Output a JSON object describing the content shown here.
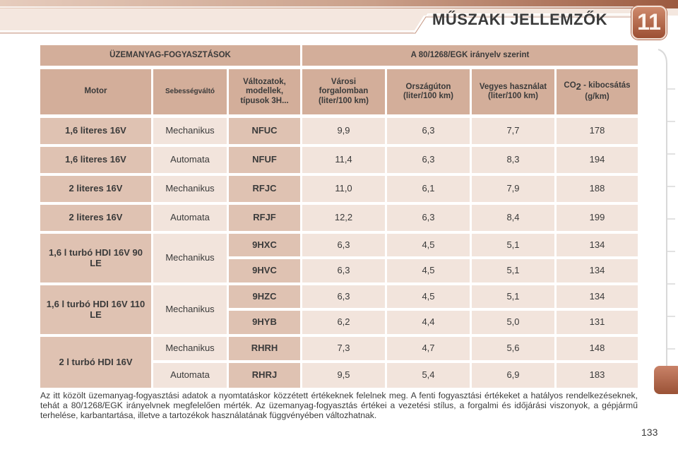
{
  "header": {
    "title": "MŰSZAKI JELLEMZŐK",
    "chapter": "11"
  },
  "table": {
    "group_left": "ÜZEMANYAG-FOGYASZTÁSOK",
    "group_right": "A 80/1268/EGK irányelv szerint",
    "col_motor": "Motor",
    "col_gearbox": "Sebességváltó",
    "col_variant": "Változatok, modellek, típusok 3H...",
    "col_city": "Városi forgalomban (liter/100 km)",
    "col_highway": "Országúton (liter/100 km)",
    "col_mixed": "Vegyes használat (liter/100 km)",
    "col_co2_pre": "CO",
    "col_co2_sub": "2",
    "col_co2_post": " - kibocsátás (g/km)",
    "groups": [
      {
        "motor": "1,6 literes 16V",
        "gearbox": "Mechanikus",
        "rows": [
          {
            "variant": "NFUC",
            "city": "9,9",
            "highway": "6,3",
            "mixed": "7,7",
            "co2": "178"
          }
        ]
      },
      {
        "motor": "1,6 literes 16V",
        "gearbox": "Automata",
        "rows": [
          {
            "variant": "NFUF",
            "city": "11,4",
            "highway": "6,3",
            "mixed": "8,3",
            "co2": "194"
          }
        ]
      },
      {
        "motor": "2 literes 16V",
        "gearbox": "Mechanikus",
        "rows": [
          {
            "variant": "RFJC",
            "city": "11,0",
            "highway": "6,1",
            "mixed": "7,9",
            "co2": "188"
          }
        ]
      },
      {
        "motor": "2 literes 16V",
        "gearbox": "Automata",
        "rows": [
          {
            "variant": "RFJF",
            "city": "12,2",
            "highway": "6,3",
            "mixed": "8,4",
            "co2": "199"
          }
        ]
      },
      {
        "motor": "1,6 l turbó HDI 16V 90 LE",
        "gearbox": "Mechanikus",
        "rows": [
          {
            "variant": "9HXC",
            "city": "6,3",
            "highway": "4,5",
            "mixed": "5,1",
            "co2": "134"
          },
          {
            "variant": "9HVC",
            "city": "6,3",
            "highway": "4,5",
            "mixed": "5,1",
            "co2": "134"
          }
        ]
      },
      {
        "motor": "1,6 l turbó HDI 16V 110 LE",
        "gearbox": "Mechanikus",
        "rows": [
          {
            "variant": "9HZC",
            "city": "6,3",
            "highway": "4,5",
            "mixed": "5,1",
            "co2": "134"
          },
          {
            "variant": "9HYB",
            "city": "6,2",
            "highway": "4,4",
            "mixed": "5,0",
            "co2": "131"
          }
        ]
      },
      {
        "motor": "2 l turbó HDI 16V",
        "gearbox_rows": true,
        "rows": [
          {
            "gearbox": "Mechanikus",
            "variant": "RHRH",
            "city": "7,3",
            "highway": "4,7",
            "mixed": "5,6",
            "co2": "148"
          },
          {
            "gearbox": "Automata",
            "variant": "RHRJ",
            "city": "9,5",
            "highway": "5,4",
            "mixed": "6,9",
            "co2": "183"
          }
        ]
      }
    ]
  },
  "note": "Az itt közölt üzemanyag-fogyasztási adatok a nyomtatáskor közzétett értékeknek felelnek meg. A fenti fogyasztási értékeket a hatályos rendelkezéseknek, tehát a 80/1268/EGK irányelvnek megfelelően mérték. Az üzemanyag-fogyasztás értékei a vezetési stílus, a forgalmi és időjárási viszonyok, a gépjármű terhelése, karbantartása, illetve a tartozékok használatának függvényében változhatnak.",
  "page_number": "133",
  "colors": {
    "header_cell": "#d3ae9a",
    "label_cell": "#dfc2b2",
    "value_cell": "#f2e4dc",
    "accent": "#b5654a"
  }
}
